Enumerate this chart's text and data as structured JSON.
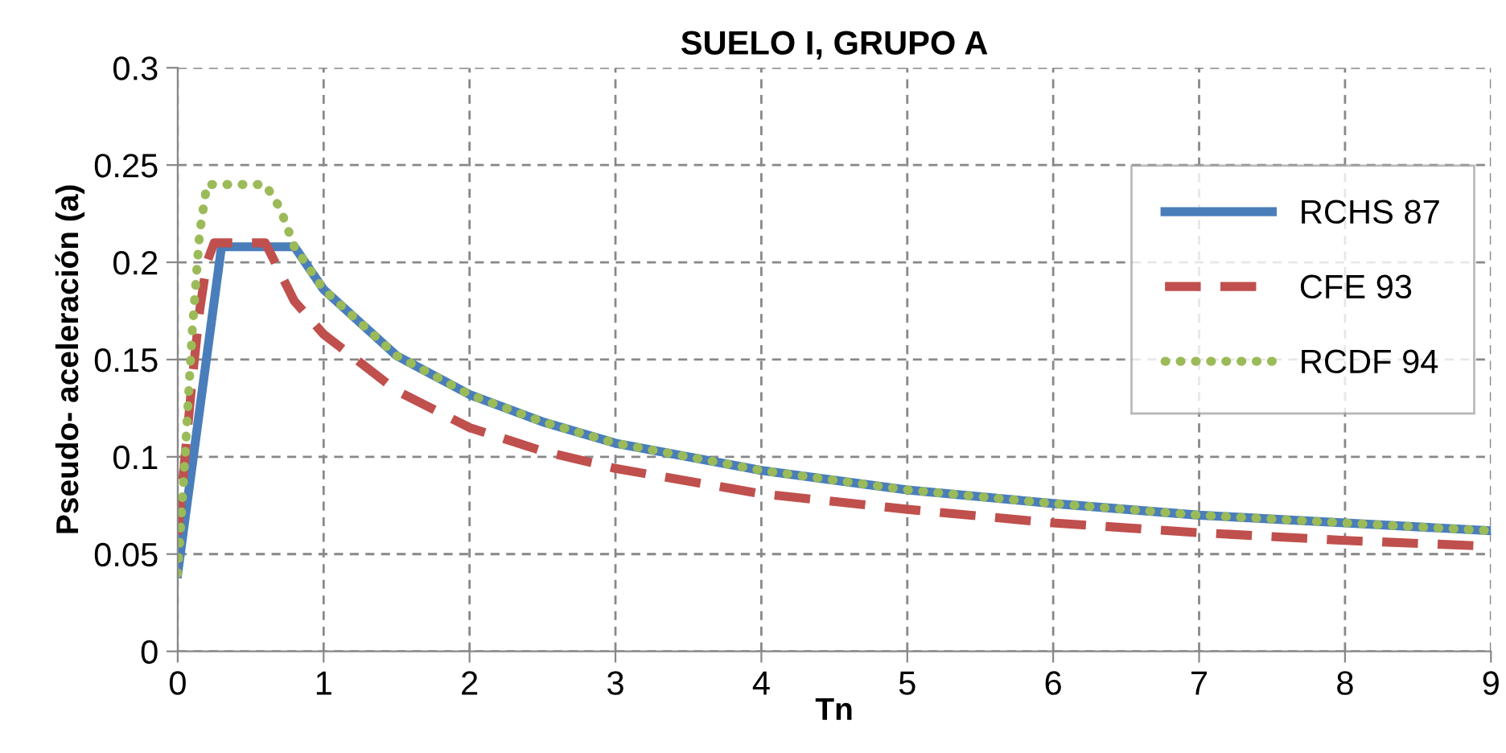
{
  "chart_data": {
    "type": "line",
    "title": "SUELO I, GRUPO A",
    "xlabel": "Tn",
    "ylabel": "Pseudo- aceleración (a)",
    "xlim": [
      0,
      9
    ],
    "xticks": [
      0,
      1,
      2,
      3,
      4,
      5,
      6,
      7,
      8,
      9
    ],
    "ylim": [
      0,
      0.3
    ],
    "yticks": [
      0,
      0.05,
      0.1,
      0.15,
      0.2,
      0.25,
      0.3
    ],
    "grid": true,
    "legend": "right",
    "series": [
      {
        "name": "RCHS 87",
        "color": "#4a7ebb",
        "line_style": "solid",
        "x": [
          0,
          0.3,
          0.8,
          1,
          1.5,
          2,
          2.5,
          3,
          4,
          5,
          6,
          7,
          8,
          9
        ],
        "values": [
          0.04,
          0.208,
          0.208,
          0.186,
          0.152,
          0.132,
          0.118,
          0.107,
          0.093,
          0.083,
          0.076,
          0.07,
          0.066,
          0.062
        ]
      },
      {
        "name": "CFE 93",
        "color": "#c0504d",
        "line_style": "dashed",
        "x": [
          0,
          0.05,
          0.1,
          0.15,
          0.2,
          0.25,
          0.6,
          0.7,
          0.8,
          1,
          1.5,
          2,
          2.5,
          3,
          4,
          5,
          6,
          7,
          8,
          9
        ],
        "values": [
          0.06,
          0.1,
          0.14,
          0.175,
          0.2,
          0.21,
          0.21,
          0.195,
          0.18,
          0.163,
          0.134,
          0.115,
          0.103,
          0.094,
          0.081,
          0.073,
          0.066,
          0.061,
          0.057,
          0.054
        ]
      },
      {
        "name": "RCDF 94",
        "color": "#9bbb59",
        "line_style": "dotted",
        "x": [
          0,
          0.05,
          0.1,
          0.15,
          0.2,
          0.6,
          0.7,
          0.8,
          1,
          1.5,
          2,
          2.5,
          3,
          4,
          5,
          6,
          7,
          8,
          9
        ],
        "values": [
          0.04,
          0.1,
          0.165,
          0.215,
          0.24,
          0.24,
          0.228,
          0.208,
          0.186,
          0.152,
          0.132,
          0.118,
          0.107,
          0.093,
          0.083,
          0.076,
          0.07,
          0.066,
          0.062
        ]
      }
    ]
  }
}
